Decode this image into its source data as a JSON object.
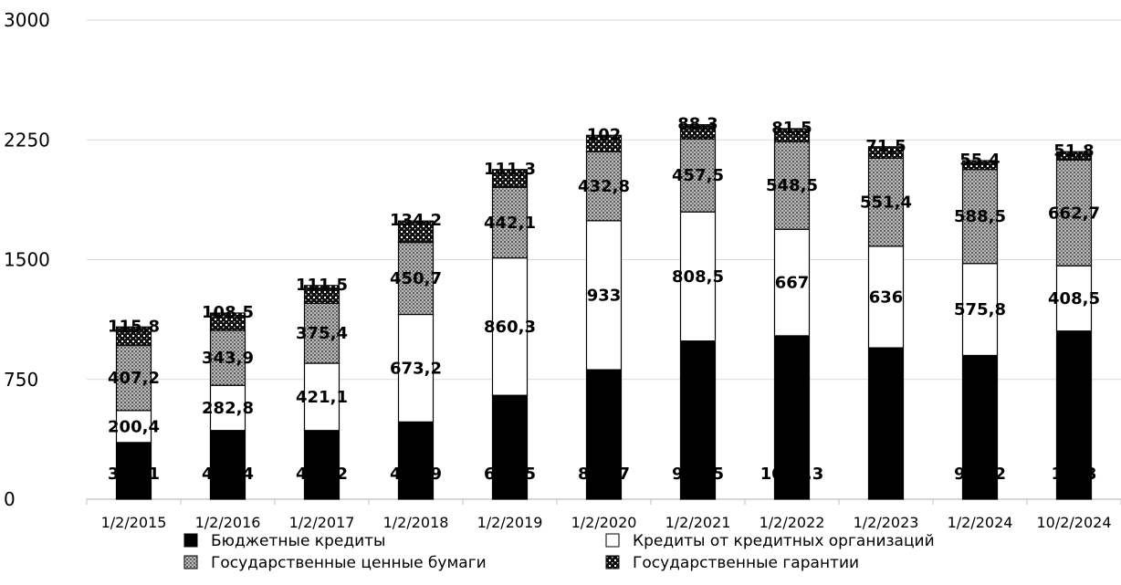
{
  "chart_data": {
    "type": "bar",
    "stacked": true,
    "categories": [
      "1/2/2015",
      "1/2/2016",
      "1/2/2017",
      "1/2/2018",
      "1/2/2019",
      "1/2/2020",
      "1/2/2021",
      "1/2/2022",
      "1/2/2023",
      "1/2/2024",
      "10/2/2024"
    ],
    "series": [
      {
        "name": "Бюджетные кредиты",
        "color": "#000000",
        "pattern": "solid",
        "values": [
          355.1,
          430.4,
          430.2,
          483.9,
          650.5,
          810.7,
          990.5,
          1023.3,
          948.0,
          900.2,
          1053.0
        ],
        "labels": [
          "355,1",
          "430,4",
          "430,2",
          "483,9",
          "650,5",
          "810,7",
          "990,5",
          "1023,3",
          "",
          "900,2",
          "1053"
        ]
      },
      {
        "name": "Кредиты от кредитных организаций",
        "color": "#ffffff",
        "pattern": "white",
        "values": [
          200.4,
          282.8,
          421.1,
          673.2,
          860.3,
          933,
          808.5,
          667,
          636,
          575.8,
          408.5
        ],
        "labels": [
          "200,4",
          "282,8",
          "421,1",
          "673,2",
          "860,3",
          "933",
          "808,5",
          "667",
          "636",
          "575,8",
          "408,5"
        ]
      },
      {
        "name": "Государственные ценные бумаги",
        "color": "#a0a0a0",
        "pattern": "grey-dots",
        "values": [
          407.2,
          343.9,
          375.4,
          450.7,
          442.1,
          432.8,
          457.5,
          548.5,
          551.4,
          588.5,
          662.7
        ],
        "labels": [
          "407,2",
          "343,9",
          "375,4",
          "450,7",
          "442,1",
          "432,8",
          "457,5",
          "548,5",
          "551,4",
          "588,5",
          "662,7"
        ]
      },
      {
        "name": "Государственные гарантии",
        "color": "#000000",
        "pattern": "black-dots",
        "values": [
          115.8,
          108.5,
          111.5,
          134.2,
          111.3,
          102,
          88.3,
          81.5,
          71.5,
          55.4,
          51.8
        ],
        "labels": [
          "115,8",
          "108,5",
          "111,5",
          "134,2",
          "111,3",
          "102",
          "88,3",
          "81,5",
          "71,5",
          "55,4",
          "51,8"
        ]
      }
    ],
    "yticks": [
      "0",
      "750",
      "1500",
      "2250",
      "3000"
    ],
    "ylim": [
      0,
      3000
    ],
    "grid": true,
    "legend_position": "bottom",
    "title": "",
    "xlabel": "",
    "ylabel": ""
  }
}
